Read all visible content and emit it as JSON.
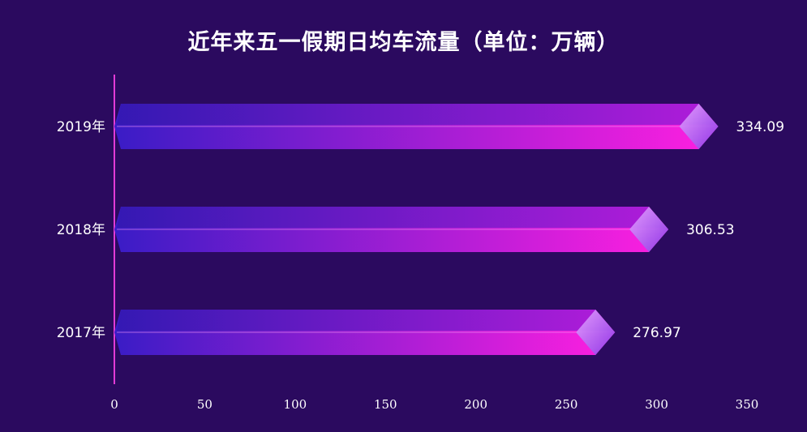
{
  "chart_data": {
    "type": "bar",
    "orientation": "horizontal",
    "title": "近年来五一假期日均车流量（单位：万辆）",
    "categories": [
      "2019年",
      "2018年",
      "2017年"
    ],
    "values": [
      334.09,
      306.53,
      276.97
    ],
    "value_labels": [
      "334.09",
      "306.53",
      "276.97"
    ],
    "xlim": [
      0,
      350
    ],
    "x_ticks": [
      0,
      50,
      100,
      150,
      200,
      250,
      300,
      350
    ],
    "x_tick_labels": [
      "0",
      "50",
      "100",
      "150",
      "200",
      "250",
      "300",
      "350"
    ],
    "grid": false,
    "colors": {
      "background": "#2b0a5f",
      "bar_start": "#3a1cc6",
      "bar_end": "#ff1fe0",
      "bar_top": "#7a2ad8",
      "cap": "#c070ff",
      "axis": "#e23bd6"
    }
  }
}
